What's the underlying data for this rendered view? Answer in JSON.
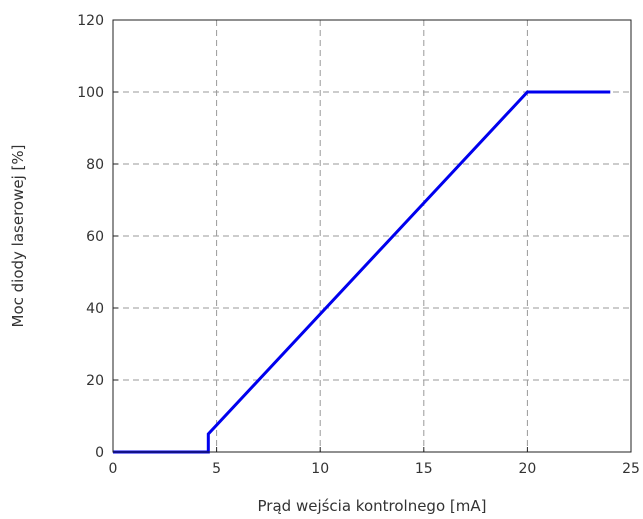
{
  "chart_data": {
    "type": "line",
    "title": "",
    "xlabel": "Prąd wejścia kontrolnego [mA]",
    "ylabel": "Moc diody laserowej [%]",
    "xlim": [
      0,
      25
    ],
    "ylim": [
      0,
      120
    ],
    "xticks": [
      0,
      5,
      10,
      15,
      20,
      25
    ],
    "yticks": [
      0,
      20,
      40,
      60,
      80,
      100,
      120
    ],
    "xtick_labels": [
      "0",
      "5",
      "10",
      "15",
      "20",
      "25"
    ],
    "ytick_labels": [
      "0",
      "20",
      "40",
      "60",
      "80",
      "100",
      "120"
    ],
    "grid": true,
    "legend": "none",
    "series": [
      {
        "x": [
          0,
          4.6,
          4.6,
          20,
          24
        ],
        "y": [
          0,
          0,
          5,
          100,
          100
        ],
        "color": "#0000ee"
      }
    ]
  }
}
